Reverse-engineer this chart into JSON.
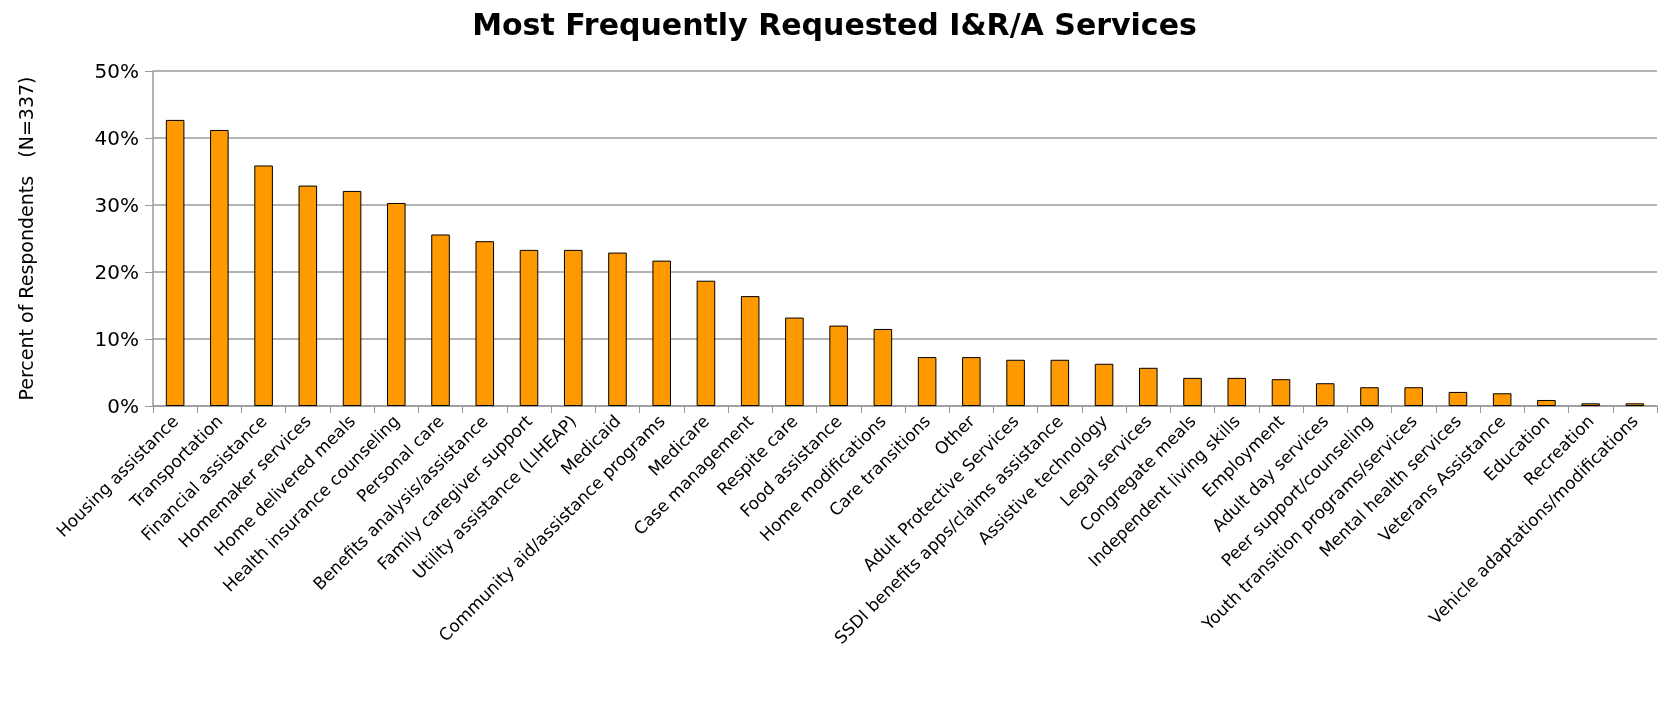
{
  "chart_data": {
    "type": "bar",
    "title": "Most Frequently Requested I&R/A Services",
    "ylabel": "Percent of Respondents   (N=337)",
    "categories": [
      "Housing assistance",
      "Transportation",
      "Financial assistance",
      "Homemaker services",
      "Home delivered meals",
      "Health insurance counseling",
      "Personal care",
      "Benefits analysis/assistance",
      "Family caregiver support",
      "Utility assistance (LIHEAP)",
      "Medicaid",
      "Community aid/assistance programs",
      "Medicare",
      "Case management",
      "Respite care",
      "Food assistance",
      "Home modifications",
      "Care transitions",
      "Other",
      "Adult Protective Services",
      "SSDI benefits apps/claims assistance",
      "Assistive technology",
      "Legal services",
      "Congregate meals",
      "Independent living skills",
      "Employment",
      "Adult day services",
      "Peer support/counseling",
      "Youth transition programs/services",
      "Mental health services",
      "Veterans Assistance",
      "Education",
      "Recreation",
      "Vehicle adaptations/modifications"
    ],
    "values": [
      42.7,
      41.2,
      35.9,
      32.9,
      32.1,
      30.3,
      25.6,
      24.6,
      23.3,
      23.3,
      22.9,
      21.7,
      18.7,
      16.4,
      13.2,
      12.0,
      11.5,
      7.3,
      7.3,
      6.9,
      6.9,
      6.3,
      5.7,
      4.2,
      4.2,
      4.0,
      3.4,
      2.8,
      2.8,
      2.1,
      1.9,
      0.9,
      0.4,
      0.4
    ],
    "color": "#ff9900",
    "ylim": [
      0,
      50
    ],
    "yticks": [
      {
        "value": 0,
        "label": "0%"
      },
      {
        "value": 10,
        "label": "10%"
      },
      {
        "value": 20,
        "label": "20%"
      },
      {
        "value": 30,
        "label": "30%"
      },
      {
        "value": 40,
        "label": "40%"
      },
      {
        "value": 50,
        "label": "50%"
      }
    ],
    "grid": "y"
  }
}
